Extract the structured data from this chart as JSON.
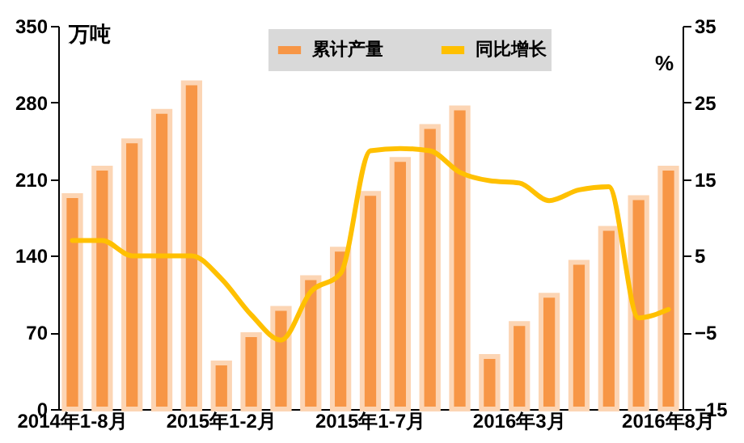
{
  "chart_data": {
    "type": "bar",
    "categories": [
      "2014年1-8月",
      null,
      null,
      null,
      null,
      "2015年1-2月",
      null,
      null,
      null,
      null,
      "2015年1-7月",
      null,
      null,
      null,
      null,
      "2016年3月",
      null,
      null,
      null,
      null,
      "2016年8月"
    ],
    "ylabel": "万吨",
    "y2label": "%",
    "series": [
      {
        "name": "累计产量",
        "color": "#f79646",
        "values": [
          195,
          220,
          245,
          272,
          298,
          42,
          68,
          92,
          120,
          146,
          197,
          228,
          258,
          275,
          48,
          78,
          104,
          134,
          165,
          193,
          220
        ]
      },
      {
        "name": "同比增长",
        "type": "line",
        "axis": "y2",
        "color": "#ffc000",
        "values": [
          7,
          7,
          5,
          5,
          5,
          2,
          -2.7,
          -6,
          0.3,
          2.7,
          18.7,
          19,
          18.7,
          15.9,
          14.8,
          14.5,
          12.2,
          13.6,
          14,
          -3.1,
          -2
        ]
      }
    ],
    "ylim": [
      0,
      350
    ],
    "yticks": [
      0,
      70,
      140,
      210,
      280,
      350
    ],
    "y2lim": [
      -15,
      35
    ],
    "y2ticks": [
      -15,
      -5,
      5,
      15,
      25,
      35
    ],
    "grid": false,
    "legend": "top"
  }
}
